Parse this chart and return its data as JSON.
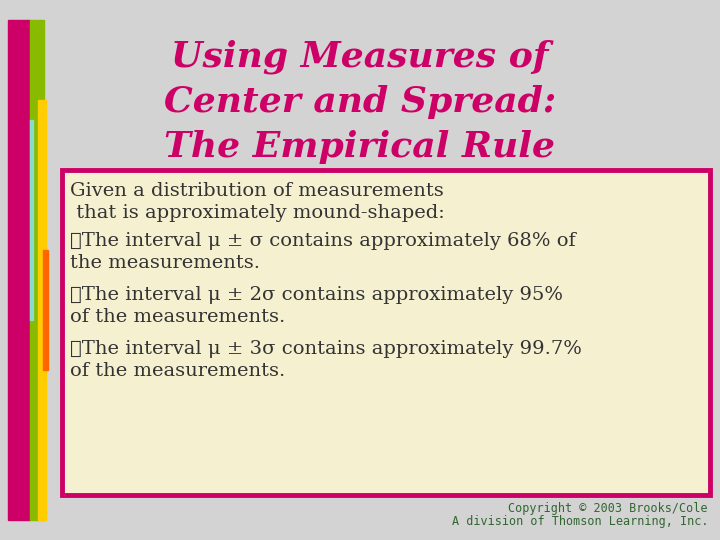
{
  "title_line1": "Using Measures of",
  "title_line2": "Center and Spread:",
  "title_line3": "The Empirical Rule",
  "title_color": "#CC0066",
  "bg_color": "#D3D3D3",
  "box_bg_color": "#F5F0D0",
  "box_border_color": "#CC0066",
  "body_text_color": "#333333",
  "copyright_color": "#336633",
  "copyright_line1": "Copyright © 2003 Brooks/Cole",
  "copyright_line2": "A division of Thomson Learning, Inc.",
  "intro_line1": "Given a distribution of measurements",
  "intro_line2": " that is approximately mound-shaped:",
  "bullet1_line1": "✓The interval μ ± σ contains approximately 68% of",
  "bullet1_line2": "the measurements.",
  "bullet2_line1": "✓The interval μ ± 2σ contains approximately 95%",
  "bullet2_line2": "of the measurements.",
  "bullet3_line1": "✓The interval μ ± 3σ contains approximately 99.7%",
  "bullet3_line2": "of the measurements.",
  "title_fontsize": 26,
  "body_fontsize": 14,
  "copyright_fontsize": 8.5
}
